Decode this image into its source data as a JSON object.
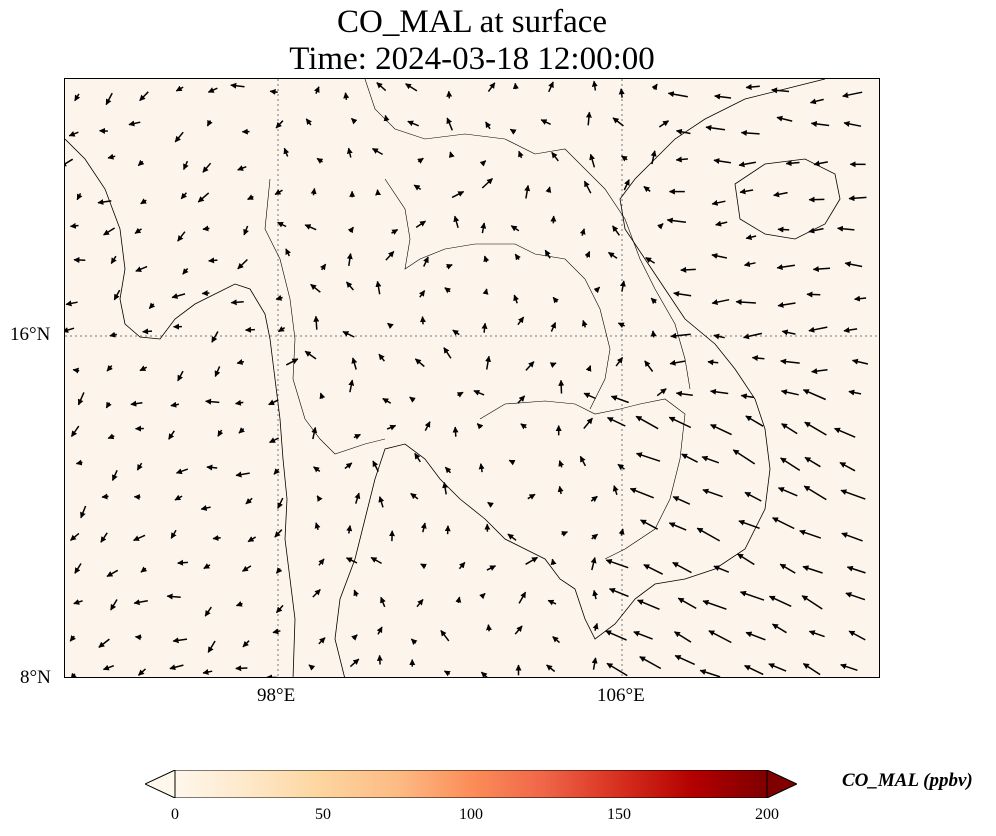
{
  "title": {
    "line1": "CO_MAL at surface",
    "line2": "Time: 2024-03-18 12:00:00"
  },
  "map": {
    "lat_ticks": [
      "16°N",
      "8°N"
    ],
    "lon_ticks": [
      "98°E",
      "106°E"
    ],
    "background_color": "#fdf5eb",
    "gridlines": true,
    "features": [
      "coastline",
      "country-borders",
      "wind-vectors"
    ]
  },
  "colorbar": {
    "label": "CO_MAL (ppbv)",
    "ticks": [
      "0",
      "50",
      "100",
      "150",
      "200"
    ],
    "colormap": "OrRd",
    "colors": [
      "#fff7ec",
      "#fee8c8",
      "#fdd49e",
      "#fdbb84",
      "#fc8d59",
      "#ef6548",
      "#d7301f",
      "#b30000",
      "#7f0000"
    ],
    "extend": "both"
  }
}
